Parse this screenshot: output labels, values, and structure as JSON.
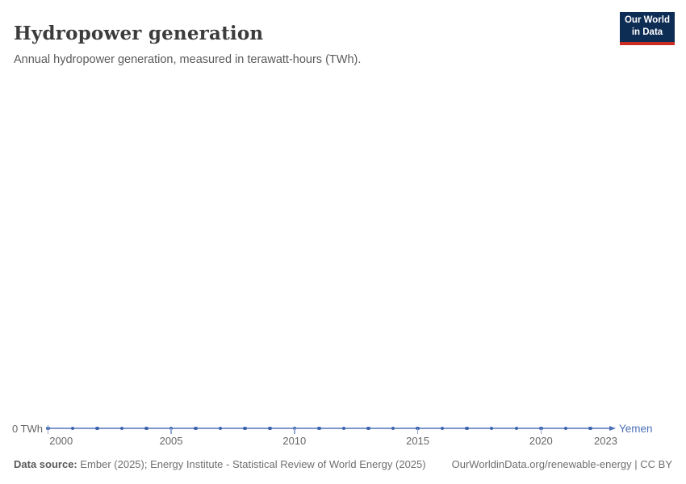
{
  "header": {
    "title": "Hydropower generation",
    "subtitle": "Annual hydropower generation, measured in terawatt-hours (TWh).",
    "logo": {
      "line1": "Our World",
      "line2": "in Data"
    }
  },
  "chart_data": {
    "type": "line",
    "title": "Hydropower generation",
    "subtitle": "Annual hydropower generation, measured in terawatt-hours (TWh)",
    "unit": "TWh",
    "series": [
      {
        "name": "Yemen",
        "color": "#4c70b8",
        "x": [
          2000,
          2001,
          2002,
          2003,
          2004,
          2005,
          2006,
          2007,
          2008,
          2009,
          2010,
          2011,
          2012,
          2013,
          2014,
          2015,
          2016,
          2017,
          2018,
          2019,
          2020,
          2021,
          2022,
          2023
        ],
        "values": [
          0,
          0,
          0,
          0,
          0,
          0,
          0,
          0,
          0,
          0,
          0,
          0,
          0,
          0,
          0,
          0,
          0,
          0,
          0,
          0,
          0,
          0,
          0,
          0
        ]
      }
    ],
    "xlim": [
      2000,
      2023
    ],
    "x_ticks": [
      2000,
      2005,
      2010,
      2015,
      2020,
      2023
    ],
    "y_tick_label": "0 TWh",
    "grid": false,
    "legend_position": "end-of-line-label"
  },
  "footer": {
    "source_label": "Data source:",
    "source_text": "Ember (2025); Energy Institute - Statistical Review of World Energy (2025)",
    "link_text": "OurWorldinData.org/renewable-energy | CC BY"
  },
  "colors": {
    "line": "#7d97cd",
    "marker": "#3d64ae",
    "entity_label": "#4c70b8",
    "logo_background": "#0e2d54",
    "logo_underline": "#cb2d24",
    "axis_text": "#666666"
  }
}
